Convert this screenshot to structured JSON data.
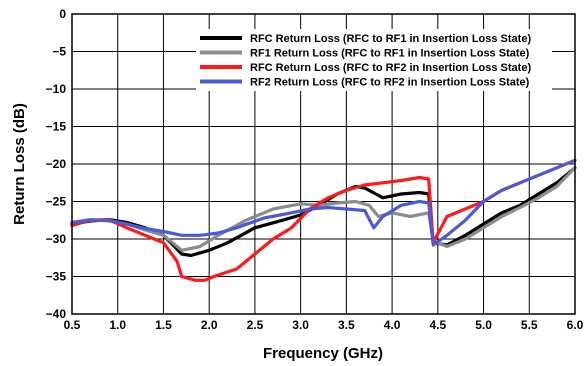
{
  "chart_data": {
    "type": "line",
    "title": "",
    "xlabel": "Frequency (GHz)",
    "ylabel": "Return Loss (dB)",
    "xlim": [
      0.5,
      6.0
    ],
    "ylim": [
      -40,
      0
    ],
    "x_ticks": [
      0.5,
      1.0,
      1.5,
      2.0,
      2.5,
      3.0,
      3.5,
      4.0,
      4.5,
      5.0,
      5.5,
      6.0
    ],
    "x_tick_labels": [
      "0.5",
      "1.0",
      "1.5",
      "2.0",
      "2.5",
      "3.0",
      "3.5",
      "4.0",
      "4.5",
      "5.0",
      "5.5",
      "6.0"
    ],
    "y_ticks": [
      0,
      -5,
      -10,
      -15,
      -20,
      -25,
      -30,
      -35,
      -40
    ],
    "y_tick_labels": [
      "0",
      "−5",
      "−10",
      "−15",
      "−20",
      "−25",
      "−30",
      "−35",
      "−40"
    ],
    "grid": true,
    "legend_position": "top-right",
    "series": [
      {
        "name": "RFC Return Loss (RFC to RF1 in Insertion Loss State)",
        "color": "#000000",
        "points": [
          [
            0.5,
            -28
          ],
          [
            0.7,
            -27.6
          ],
          [
            0.9,
            -27.4
          ],
          [
            1.1,
            -27.8
          ],
          [
            1.3,
            -28.5
          ],
          [
            1.5,
            -29.5
          ],
          [
            1.7,
            -32
          ],
          [
            1.8,
            -32.2
          ],
          [
            2.0,
            -31.5
          ],
          [
            2.2,
            -30.5
          ],
          [
            2.5,
            -28.5
          ],
          [
            2.8,
            -27.5
          ],
          [
            3.0,
            -26.8
          ],
          [
            3.2,
            -25.5
          ],
          [
            3.4,
            -24
          ],
          [
            3.6,
            -23
          ],
          [
            3.7,
            -23.2
          ],
          [
            3.9,
            -24.5
          ],
          [
            4.1,
            -24
          ],
          [
            4.3,
            -23.8
          ],
          [
            4.4,
            -24
          ],
          [
            4.45,
            -30.5
          ],
          [
            4.6,
            -30.8
          ],
          [
            4.8,
            -29.5
          ],
          [
            5.0,
            -28
          ],
          [
            5.2,
            -26.5
          ],
          [
            5.4,
            -25.5
          ],
          [
            5.6,
            -24
          ],
          [
            5.8,
            -22.5
          ],
          [
            6.0,
            -20.5
          ]
        ]
      },
      {
        "name": "RF1 Return Loss (RFC to RF1 in Insertion Loss State)",
        "color": "#8c8c8c",
        "points": [
          [
            0.5,
            -27.8
          ],
          [
            0.7,
            -27.4
          ],
          [
            0.9,
            -27.6
          ],
          [
            1.1,
            -28
          ],
          [
            1.3,
            -28.8
          ],
          [
            1.5,
            -29.5
          ],
          [
            1.7,
            -31.5
          ],
          [
            1.9,
            -31
          ],
          [
            2.1,
            -29.5
          ],
          [
            2.4,
            -27.5
          ],
          [
            2.7,
            -26
          ],
          [
            3.0,
            -25.3
          ],
          [
            3.2,
            -25.5
          ],
          [
            3.4,
            -25.2
          ],
          [
            3.6,
            -25
          ],
          [
            3.75,
            -25.5
          ],
          [
            3.85,
            -27
          ],
          [
            4.0,
            -26.5
          ],
          [
            4.2,
            -27
          ],
          [
            4.4,
            -26.5
          ],
          [
            4.45,
            -30.3
          ],
          [
            4.6,
            -31
          ],
          [
            4.8,
            -30
          ],
          [
            5.0,
            -28.5
          ],
          [
            5.2,
            -27
          ],
          [
            5.4,
            -25.8
          ],
          [
            5.6,
            -24.5
          ],
          [
            5.8,
            -23
          ],
          [
            6.0,
            -20.5
          ]
        ]
      },
      {
        "name": "RFC Return Loss (RFC to RF2 in Insertion Loss State)",
        "color": "#ff1a1a",
        "points": [
          [
            0.5,
            -28.2
          ],
          [
            0.7,
            -27.5
          ],
          [
            0.9,
            -27.4
          ],
          [
            1.1,
            -28.5
          ],
          [
            1.3,
            -29.5
          ],
          [
            1.5,
            -30.5
          ],
          [
            1.65,
            -33
          ],
          [
            1.7,
            -35
          ],
          [
            1.85,
            -35.5
          ],
          [
            1.95,
            -35.5
          ],
          [
            2.05,
            -35
          ],
          [
            2.3,
            -34
          ],
          [
            2.5,
            -32
          ],
          [
            2.7,
            -30
          ],
          [
            2.9,
            -28.5
          ],
          [
            3.1,
            -26
          ],
          [
            3.3,
            -24.5
          ],
          [
            3.5,
            -23.5
          ],
          [
            3.7,
            -22.8
          ],
          [
            3.9,
            -22.5
          ],
          [
            4.1,
            -22.2
          ],
          [
            4.3,
            -21.8
          ],
          [
            4.4,
            -22
          ],
          [
            4.45,
            -30.5
          ],
          [
            4.6,
            -27
          ],
          [
            4.8,
            -26
          ],
          [
            5.0,
            -25
          ],
          [
            5.2,
            -23.5
          ],
          [
            5.4,
            -22.5
          ],
          [
            5.6,
            -21.5
          ],
          [
            5.8,
            -20.5
          ],
          [
            6.0,
            -19.5
          ]
        ]
      },
      {
        "name": "RF2 Return Loss (RFC to RF2 in Insertion Loss State)",
        "color": "#4a5bd9",
        "points": [
          [
            0.5,
            -27.8
          ],
          [
            0.7,
            -27.5
          ],
          [
            0.9,
            -27.5
          ],
          [
            1.1,
            -28
          ],
          [
            1.3,
            -28.6
          ],
          [
            1.5,
            -29
          ],
          [
            1.7,
            -29.5
          ],
          [
            1.9,
            -29.5
          ],
          [
            2.1,
            -29.2
          ],
          [
            2.3,
            -28.5
          ],
          [
            2.6,
            -27.2
          ],
          [
            2.9,
            -26.5
          ],
          [
            3.1,
            -26
          ],
          [
            3.3,
            -25.8
          ],
          [
            3.5,
            -26
          ],
          [
            3.7,
            -26.2
          ],
          [
            3.8,
            -28.5
          ],
          [
            3.9,
            -27
          ],
          [
            4.1,
            -25.5
          ],
          [
            4.3,
            -25
          ],
          [
            4.4,
            -25.2
          ],
          [
            4.45,
            -30.8
          ],
          [
            4.6,
            -29.5
          ],
          [
            4.8,
            -27.5
          ],
          [
            5.0,
            -25
          ],
          [
            5.2,
            -23.5
          ],
          [
            5.4,
            -22.5
          ],
          [
            5.6,
            -21.5
          ],
          [
            5.8,
            -20.5
          ],
          [
            6.0,
            -19.5
          ]
        ]
      }
    ]
  }
}
